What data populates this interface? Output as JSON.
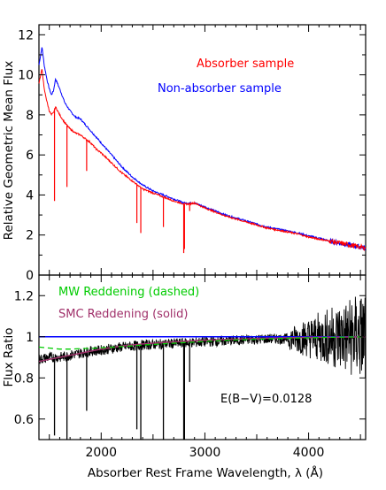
{
  "chart_data": [
    {
      "type": "line",
      "xlabel": "",
      "ylabel": "Relative Geometric Mean Flux",
      "xlim": [
        1400,
        4550
      ],
      "ylim": [
        0,
        12.5
      ],
      "xticks": [
        2000,
        3000,
        4000
      ],
      "yticks": [
        0,
        2,
        4,
        6,
        8,
        10,
        12
      ],
      "legend_entries": [
        {
          "label": "Absorber sample",
          "color": "#ff0000"
        },
        {
          "label": "Non-absorber sample",
          "color": "#0000ff"
        }
      ],
      "series": [
        {
          "name": "Non-absorber sample",
          "color": "#0000ff",
          "x": [
            1400,
            1430,
            1450,
            1480,
            1500,
            1520,
            1540,
            1560,
            1600,
            1650,
            1700,
            1750,
            1800,
            1850,
            1900,
            1950,
            2000,
            2100,
            2200,
            2300,
            2400,
            2500,
            2600,
            2700,
            2800,
            2850,
            2900,
            3000,
            3100,
            3200,
            3300,
            3400,
            3500,
            3600,
            3700,
            3800,
            3900,
            4000,
            4100,
            4200,
            4300,
            4400,
            4500,
            4550
          ],
          "values": [
            10.5,
            11.4,
            10.5,
            9.7,
            9.3,
            9.0,
            9.2,
            9.8,
            9.3,
            8.6,
            8.2,
            7.9,
            7.8,
            7.5,
            7.2,
            6.9,
            6.6,
            6.0,
            5.4,
            4.9,
            4.5,
            4.2,
            4.0,
            3.8,
            3.6,
            3.6,
            3.6,
            3.4,
            3.2,
            3.0,
            2.85,
            2.7,
            2.55,
            2.4,
            2.3,
            2.2,
            2.1,
            1.95,
            1.85,
            1.7,
            1.6,
            1.5,
            1.4,
            1.35
          ]
        },
        {
          "name": "Absorber sample",
          "color": "#ff0000",
          "x": [
            1400,
            1430,
            1450,
            1480,
            1500,
            1520,
            1540,
            1560,
            1600,
            1650,
            1700,
            1750,
            1800,
            1850,
            1900,
            1950,
            2000,
            2100,
            2200,
            2300,
            2400,
            2500,
            2600,
            2700,
            2800,
            2850,
            2900,
            3000,
            3100,
            3200,
            3300,
            3400,
            3500,
            3600,
            3700,
            3800,
            3900,
            4000,
            4100,
            4200,
            4300,
            4400,
            4500,
            4550
          ],
          "values": [
            9.6,
            10.3,
            9.3,
            8.6,
            8.2,
            8.0,
            8.1,
            8.4,
            8.0,
            7.6,
            7.3,
            7.1,
            7.0,
            6.8,
            6.6,
            6.3,
            6.1,
            5.6,
            5.1,
            4.7,
            4.3,
            4.1,
            3.9,
            3.7,
            3.55,
            3.55,
            3.6,
            3.35,
            3.15,
            2.95,
            2.8,
            2.65,
            2.5,
            2.35,
            2.25,
            2.15,
            2.05,
            1.9,
            1.8,
            1.7,
            1.6,
            1.5,
            1.4,
            1.35
          ]
        }
      ],
      "absorption_lines": [
        {
          "x": 1550,
          "depth_to": 3.7
        },
        {
          "x": 1670,
          "depth_to": 4.4
        },
        {
          "x": 1860,
          "depth_to": 5.2
        },
        {
          "x": 2344,
          "depth_to": 2.6
        },
        {
          "x": 2382,
          "depth_to": 2.1
        },
        {
          "x": 2600,
          "depth_to": 2.4
        },
        {
          "x": 2796,
          "depth_to": 1.1
        },
        {
          "x": 2803,
          "depth_to": 1.3
        },
        {
          "x": 2853,
          "depth_to": 3.2
        }
      ]
    },
    {
      "type": "line",
      "xlabel": "Absorber Rest Frame Wavelength, λ (Å)",
      "ylabel": "Flux Ratio",
      "xlim": [
        1400,
        4550
      ],
      "ylim": [
        0.5,
        1.3
      ],
      "xticks": [
        2000,
        3000,
        4000
      ],
      "yticks": [
        0.6,
        0.8,
        1,
        1.2
      ],
      "ytick_labels": [
        "0.6",
        "0.8",
        "1",
        "1.2"
      ],
      "xtick_labels": [
        "2000",
        "3000",
        "4000"
      ],
      "annotations": [
        {
          "text": "MW Reddening (dashed)",
          "color": "#00cc00"
        },
        {
          "text": "SMC Reddening (solid)",
          "color": "#a0306a"
        },
        {
          "text": "E(B−V)=0.0128",
          "color": "#000000"
        }
      ],
      "series": [
        {
          "name": "",
          "color": "#0000ff",
          "x": [
            1400,
            4550
          ],
          "values": [
            1.0,
            1.0
          ]
        },
        {
          "name": "",
          "color": "#000000",
          "x": [
            1400,
            1500,
            1600,
            1700,
            1800,
            1900,
            2000,
            2200,
            2400,
            2600,
            2800,
            3000,
            3200,
            3400,
            3600,
            3800,
            4000,
            4200,
            4400,
            4550
          ],
          "values": [
            0.89,
            0.9,
            0.9,
            0.91,
            0.92,
            0.93,
            0.935,
            0.95,
            0.96,
            0.965,
            0.97,
            0.975,
            0.98,
            0.985,
            0.99,
            0.99,
            0.995,
            1.0,
            1.0,
            1.0
          ]
        },
        {
          "name": "",
          "color": "#a0306a",
          "x": [
            1400,
            1500,
            1600,
            1700,
            1800,
            1900,
            2000,
            2200,
            2400,
            2600,
            2800,
            3000,
            3200,
            3400,
            3600,
            3800,
            4000,
            4200,
            4400,
            4550
          ],
          "values": [
            0.88,
            0.89,
            0.9,
            0.91,
            0.92,
            0.93,
            0.94,
            0.955,
            0.965,
            0.972,
            0.978,
            0.983,
            0.987,
            0.99,
            0.993,
            0.995,
            0.997,
            0.998,
            0.999,
            1.0
          ]
        },
        {
          "name": "",
          "color": "#00cc00",
          "x": [
            1400,
            1500,
            1600,
            1700,
            1800,
            1900,
            2000,
            2200,
            2400,
            2600,
            2800,
            3000,
            3200,
            3400,
            3600,
            3800,
            4000,
            4200,
            4400,
            4550
          ],
          "values": [
            0.95,
            0.945,
            0.94,
            0.94,
            0.942,
            0.944,
            0.946,
            0.952,
            0.96,
            0.966,
            0.972,
            0.978,
            0.983,
            0.987,
            0.99,
            0.993,
            0.995,
            0.997,
            0.999,
            1.0
          ]
        }
      ],
      "absorption_lines": [
        {
          "x": 1550,
          "depth_to": 0.52
        },
        {
          "x": 1670,
          "depth_to": 0.5
        },
        {
          "x": 1860,
          "depth_to": 0.64
        },
        {
          "x": 2344,
          "depth_to": 0.55
        },
        {
          "x": 2382,
          "depth_to": 0.5
        },
        {
          "x": 2600,
          "depth_to": 0.5
        },
        {
          "x": 2796,
          "depth_to": 0.5
        },
        {
          "x": 2803,
          "depth_to": 0.5
        },
        {
          "x": 2853,
          "depth_to": 0.78
        }
      ]
    }
  ]
}
